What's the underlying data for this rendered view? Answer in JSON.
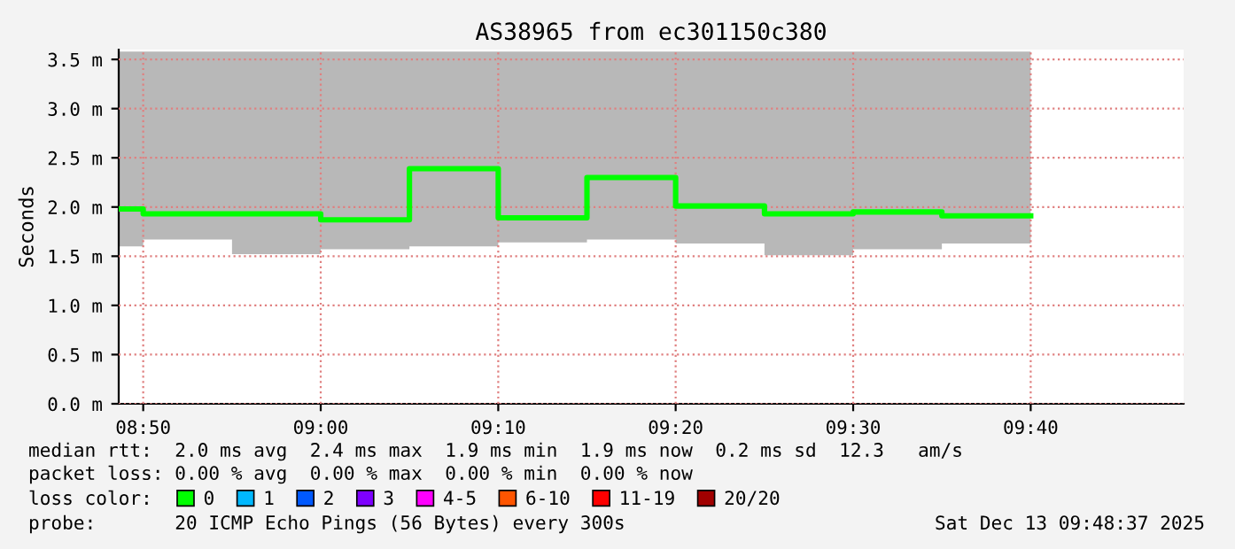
{
  "chart_data": {
    "type": "step",
    "title": "AS38965 from ec301150c380",
    "ylabel": "Seconds",
    "x": [
      8.8103,
      8.8333,
      8.9167,
      9.0,
      9.0833,
      9.1667,
      9.25,
      9.3333,
      9.4167,
      9.5,
      9.5833,
      9.6667
    ],
    "series": [
      {
        "name": "0",
        "color": "#00ff00",
        "values": [
          1.98,
          1.93,
          1.93,
          1.87,
          2.39,
          1.89,
          2.3,
          2.01,
          1.93,
          1.95,
          1.91,
          1.91
        ],
        "lower": [
          1.6,
          1.67,
          1.52,
          1.57,
          1.6,
          1.64,
          1.67,
          1.63,
          1.51,
          1.57,
          1.63,
          1.63
        ],
        "upper": [
          3.58,
          3.58,
          3.58,
          3.58,
          3.58,
          3.58,
          3.58,
          3.58,
          3.58,
          3.58,
          3.58,
          3.58
        ]
      },
      {
        "name": "1",
        "color": "#00b8ff",
        "values": [
          null,
          null,
          null,
          null,
          null,
          null,
          null,
          null,
          null,
          null,
          null,
          null
        ]
      },
      {
        "name": "2",
        "color": "#0059ff",
        "values": [
          null,
          null,
          null,
          null,
          null,
          null,
          null,
          null,
          null,
          null,
          null,
          null
        ]
      },
      {
        "name": "3",
        "color": "#7e00ff",
        "values": [
          null,
          null,
          null,
          null,
          null,
          null,
          null,
          null,
          null,
          null,
          null,
          null
        ]
      },
      {
        "name": "4-5",
        "color": "#ff00ff",
        "values": [
          null,
          null,
          null,
          null,
          null,
          null,
          null,
          null,
          null,
          null,
          null,
          null
        ]
      },
      {
        "name": "6-10",
        "color": "#ff5500",
        "values": [
          null,
          null,
          null,
          null,
          null,
          null,
          null,
          null,
          null,
          null,
          null,
          null
        ]
      },
      {
        "name": "11-19",
        "color": "#ff0000",
        "values": [
          null,
          null,
          null,
          null,
          null,
          null,
          null,
          null,
          null,
          null,
          null,
          null
        ]
      },
      {
        "name": "20/20",
        "color": "#a10000",
        "values": [
          null,
          null,
          null,
          null,
          null,
          null,
          null,
          null,
          null,
          null,
          null,
          null
        ]
      }
    ],
    "legend_title": "loss color:",
    "legend": "bottom",
    "xlim": [
      8.8103,
      9.8103
    ],
    "xticks": [
      {
        "value": 8.8333,
        "label": "08:50"
      },
      {
        "value": 9.0,
        "label": "09:00"
      },
      {
        "value": 9.1667,
        "label": "09:10"
      },
      {
        "value": 9.3333,
        "label": "09:20"
      },
      {
        "value": 9.5,
        "label": "09:30"
      },
      {
        "value": 9.6667,
        "label": "09:40"
      }
    ],
    "ylim": [
      0,
      3.6
    ],
    "yticks": [
      {
        "value": 0,
        "label": "0.0 m"
      },
      {
        "value": 0.5,
        "label": "0.5 m"
      },
      {
        "value": 1.0,
        "label": "1.0 m"
      },
      {
        "value": 1.5,
        "label": "1.5 m"
      },
      {
        "value": 2.0,
        "label": "2.0 m"
      },
      {
        "value": 2.5,
        "label": "2.5 m"
      },
      {
        "value": 3.0,
        "label": "3.0 m"
      },
      {
        "value": 3.5,
        "label": "3.5 m"
      }
    ],
    "grid": true,
    "line_style": "solid",
    "marker": "none",
    "annotations": [
      "median rtt:  2.0 ms avg  2.4 ms max  1.9 ms min  1.9 ms now  0.2 ms sd  12.3   am/s",
      "packet loss: 0.00 % avg  0.00 % max  0.00 % min  0.00 % now",
      "probe:       20 ICMP Echo Pings (56 Bytes) every 300s",
      "Sat Dec 13 09:48:37 2025"
    ]
  }
}
